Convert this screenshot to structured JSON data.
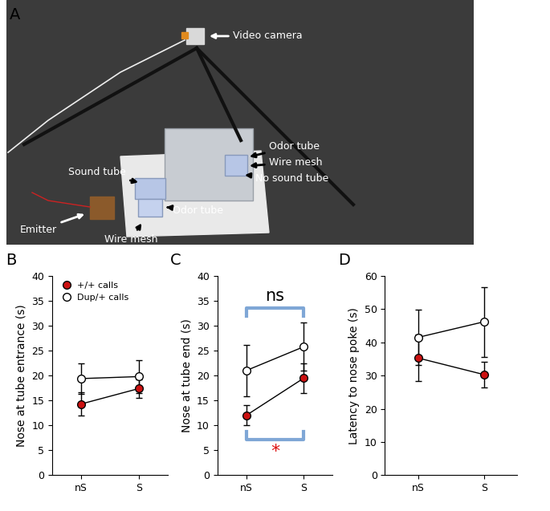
{
  "photo": {
    "panel": "A",
    "labels": [
      "Video camera",
      "Odor tube",
      "Wire mesh",
      "No sound tube",
      "Sound tube",
      "Odor tube",
      "Emitter",
      "Wire mesh"
    ]
  },
  "chart_data": [
    {
      "panel": "B",
      "type": "line",
      "ylabel": "Nose at tube entrance (s)",
      "categories": [
        "nS",
        "S"
      ],
      "ylim": [
        0,
        40
      ],
      "yticks": [
        0,
        5,
        10,
        15,
        20,
        25,
        30,
        35,
        40
      ],
      "legend": "upper left",
      "marker": "o",
      "series": [
        {
          "name": "+/+ calls",
          "color": "#cc1111",
          "values": [
            14.3,
            17.4
          ],
          "errors": [
            2.3,
            1.8
          ]
        },
        {
          "name": "Dup/+ calls",
          "color": "#ffffff",
          "values": [
            19.4,
            19.8
          ],
          "errors": [
            3.0,
            3.3
          ]
        }
      ]
    },
    {
      "panel": "C",
      "type": "line",
      "ylabel": "Nose at tube end (s)",
      "categories": [
        "nS",
        "S"
      ],
      "ylim": [
        0,
        40
      ],
      "yticks": [
        0,
        5,
        10,
        15,
        20,
        25,
        30,
        35,
        40
      ],
      "marker": "o",
      "annotations": [
        {
          "text": "ns",
          "color": "#000000"
        },
        {
          "text": "*",
          "color": "#dd1111"
        }
      ],
      "series": [
        {
          "name": "+/+ calls",
          "color": "#cc1111",
          "values": [
            12.0,
            19.5
          ],
          "errors": [
            2.0,
            3.0
          ]
        },
        {
          "name": "Dup/+ calls",
          "color": "#ffffff",
          "values": [
            21.0,
            25.8
          ],
          "errors": [
            5.2,
            4.8
          ]
        }
      ]
    },
    {
      "panel": "D",
      "type": "line",
      "ylabel": "Latency to nose poke (s)",
      "categories": [
        "nS",
        "S"
      ],
      "ylim": [
        0,
        60
      ],
      "yticks": [
        0,
        10,
        20,
        30,
        40,
        50,
        60
      ],
      "marker": "o",
      "series": [
        {
          "name": "+/+ calls",
          "color": "#cc1111",
          "values": [
            35.3,
            30.3
          ],
          "errors": [
            7.0,
            3.8
          ]
        },
        {
          "name": "Dup/+ calls",
          "color": "#ffffff",
          "values": [
            41.5,
            46.2
          ],
          "errors": [
            8.3,
            10.5
          ]
        }
      ]
    }
  ]
}
